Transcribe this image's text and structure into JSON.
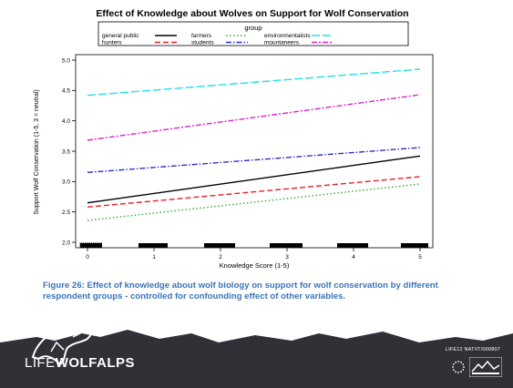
{
  "chart_data": {
    "type": "line",
    "title": "Effect of Knowledge about Wolves on Support for Wolf Conservation",
    "legend_title": "group",
    "legend_position": "top",
    "xlabel": "Knowledge Score (1-5)",
    "ylabel": "Support Wolf Conservation (1-5, 3 = neutral)",
    "xlim": [
      0,
      5
    ],
    "ylim": [
      2.0,
      5.0
    ],
    "xticks": [
      "0",
      "1",
      "2",
      "3",
      "4",
      "5"
    ],
    "yticks": [
      "2.0",
      "2.5",
      "3.0",
      "3.5",
      "4.0",
      "4.5",
      "5.0"
    ],
    "grid": false,
    "x": [
      0,
      5
    ],
    "series": [
      {
        "name": "general public",
        "values": [
          2.65,
          3.42
        ],
        "color": "#000000",
        "dash": "solid"
      },
      {
        "name": "hunters",
        "values": [
          2.58,
          3.08
        ],
        "color": "#e8202a",
        "dash": "dashed"
      },
      {
        "name": "farmers",
        "values": [
          2.36,
          2.96
        ],
        "color": "#33aa33",
        "dash": "dotted"
      },
      {
        "name": "students",
        "values": [
          3.15,
          3.56
        ],
        "color": "#3030cc",
        "dash": "dashdot"
      },
      {
        "name": "environmentalists",
        "values": [
          4.42,
          4.85
        ],
        "color": "#22e0e6",
        "dash": "longdash"
      },
      {
        "name": "mountaneers",
        "values": [
          3.68,
          4.43
        ],
        "color": "#e020d0",
        "dash": "twodash"
      }
    ]
  },
  "caption": "Figure 26: Effect of knowledge about wolf biology on support for wolf conservation by different respondent groups - controlled for confounding effect of other variables.",
  "footer": {
    "brand_prefix": "LIFE",
    "brand_name": "WOLFALPS",
    "project_code": "LIFE12 NAT/IT/000807"
  },
  "colors": {
    "footer_dark": "#2f3137",
    "caption_blue": "#3a74b7"
  }
}
